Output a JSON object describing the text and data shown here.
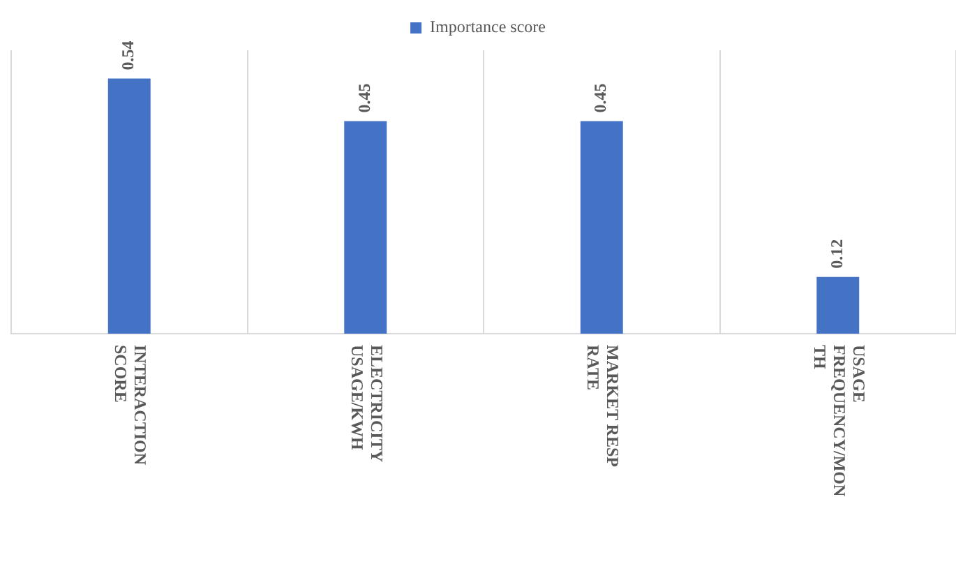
{
  "chart_data": {
    "type": "bar",
    "categories": [
      "INTERACTION SCORE",
      "ELECTRICITY USAGE/KWH",
      "MARKET RESP RATE",
      "USAGE FREQUENCY/MONTH"
    ],
    "series": [
      {
        "name": "Importance score",
        "color": "#4472c4",
        "values": [
          0.54,
          0.45,
          0.45,
          0.12
        ]
      }
    ],
    "ylim": [
      0,
      0.6
    ],
    "data_labels": true,
    "grid": "x",
    "legend": "top"
  }
}
